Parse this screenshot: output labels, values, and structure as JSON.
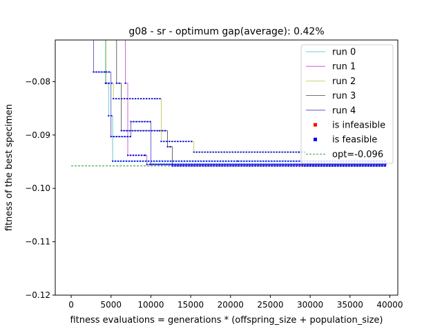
{
  "chart_data": {
    "type": "line",
    "title": "g08  -  sr  -  optimum gap(average): 0.42%",
    "xlabel": "fitness evaluations = generations * (offspring_size + population_size)",
    "ylabel": "fitness of the best specimen",
    "xlim": [
      -2000,
      41000
    ],
    "ylim": [
      -0.12,
      -0.0722
    ],
    "x_ticks": [
      0,
      5000,
      10000,
      15000,
      20000,
      25000,
      30000,
      35000,
      40000
    ],
    "x_tick_labels": [
      "0",
      "5000",
      "10000",
      "15000",
      "20000",
      "25000",
      "30000",
      "35000",
      "40000"
    ],
    "y_ticks": [
      -0.12,
      -0.11,
      -0.1,
      -0.09,
      -0.08
    ],
    "y_tick_labels": [
      "−0.12",
      "−0.11",
      "−0.10",
      "−0.09",
      "−0.08"
    ],
    "grid": false,
    "legend_position": "upper right",
    "optimum": {
      "name": "opt=-0.096",
      "value": -0.0958,
      "color": "#008000",
      "style": "dashed"
    },
    "series": [
      {
        "name": "run 0",
        "color": "#40c0c0",
        "x": [
          3500,
          4300,
          4700,
          5200,
          21000,
          39500
        ],
        "y": [
          -0.05,
          -0.0803,
          -0.0864,
          -0.0949,
          -0.0949,
          -0.0958
        ]
      },
      {
        "name": "run 1",
        "color": "#c040c0",
        "x": [
          3700,
          6800,
          7100,
          9300,
          9500,
          39500
        ],
        "y": [
          -0.05,
          -0.0803,
          -0.0938,
          -0.0938,
          -0.0955,
          -0.0958
        ]
      },
      {
        "name": "run 2",
        "color": "#c0c040",
        "x": [
          3400,
          4400,
          5300,
          10800,
          11300,
          15400,
          28600,
          29300,
          39500
        ],
        "y": [
          -0.05,
          -0.0803,
          -0.0832,
          -0.0832,
          -0.0912,
          -0.0932,
          -0.0932,
          -0.0958,
          -0.0958
        ]
      },
      {
        "name": "run 3",
        "color": "#404040",
        "x": [
          4500,
          5700,
          6300,
          11100,
          12100,
          12700,
          39500
        ],
        "y": [
          -0.05,
          -0.0803,
          -0.0892,
          -0.0892,
          -0.0922,
          -0.0958,
          -0.0958
        ]
      },
      {
        "name": "run 4",
        "color": "#4040c0",
        "x": [
          2200,
          2800,
          4400,
          5000,
          7500,
          10000,
          39500
        ],
        "y": [
          -0.05,
          -0.0782,
          -0.0782,
          -0.0903,
          -0.0875,
          -0.0955,
          -0.0958
        ]
      }
    ],
    "markers": [
      {
        "name": "is infeasible",
        "color": "#ff0000"
      },
      {
        "name": "is feasible",
        "color": "#0000ff"
      }
    ]
  }
}
